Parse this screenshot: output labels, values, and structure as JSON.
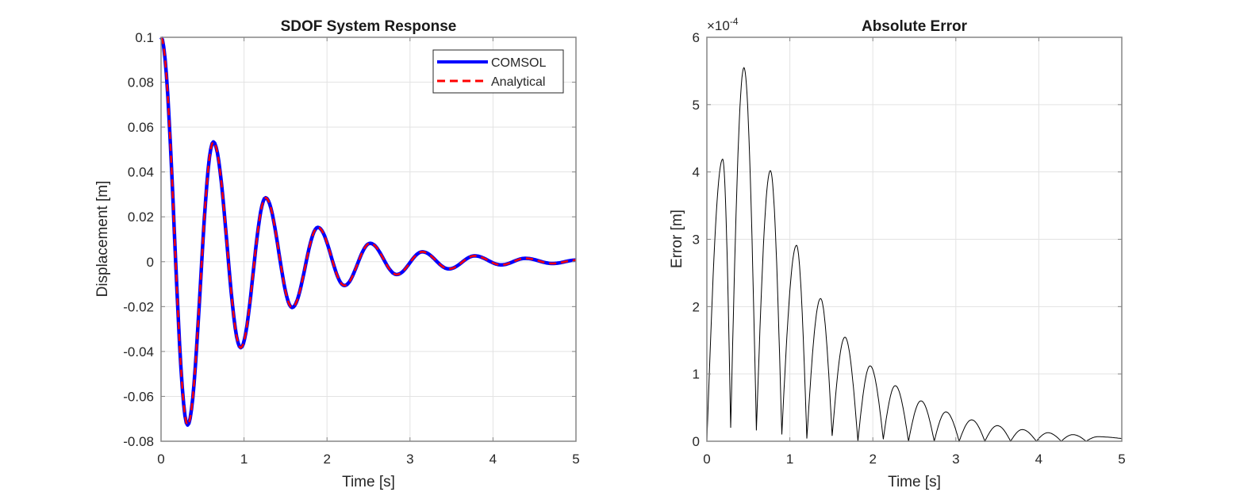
{
  "chart_data": [
    {
      "type": "line",
      "title": "SDOF System Response",
      "xlabel": "Time [s]",
      "ylabel": "Displacement [m]",
      "xlim": [
        0,
        5
      ],
      "ylim": [
        -0.08,
        0.1
      ],
      "xticks": [
        "0",
        "1",
        "2",
        "3",
        "4",
        "5"
      ],
      "yticks": [
        "-0.08",
        "-0.06",
        "-0.04",
        "-0.02",
        "0",
        "0.02",
        "0.04",
        "0.06",
        "0.08",
        "0.1"
      ],
      "grid": true,
      "legend_position": "top-right",
      "series": [
        {
          "name": "COMSOL",
          "color": "#0000ff",
          "style": "solid"
        },
        {
          "name": "Analytical",
          "color": "#ff0000",
          "style": "dashed"
        }
      ],
      "extrema_points": [
        [
          0,
          0.1
        ],
        [
          0.32,
          -0.0728
        ],
        [
          0.63,
          0.0534
        ],
        [
          0.96,
          -0.0383
        ],
        [
          1.26,
          0.0285
        ],
        [
          1.58,
          -0.0204
        ],
        [
          1.89,
          0.0153
        ],
        [
          2.21,
          -0.0106
        ],
        [
          2.52,
          0.0082
        ],
        [
          2.84,
          -0.0057
        ],
        [
          3.15,
          0.0044
        ],
        [
          3.47,
          -0.0032
        ],
        [
          3.78,
          0.0026
        ],
        [
          4.1,
          -0.0014
        ],
        [
          4.39,
          0.0015
        ],
        [
          4.72,
          -0.0008
        ],
        [
          5.0,
          0.0007
        ]
      ]
    },
    {
      "type": "line",
      "title": "Absolute Error",
      "xlabel": "Time [s]",
      "ylabel": "Error [m]",
      "y_exponent_label": "×10",
      "y_exponent": "-4",
      "xlim": [
        0,
        5
      ],
      "ylim": [
        0,
        0.0006
      ],
      "xticks": [
        "0",
        "1",
        "2",
        "3",
        "4",
        "5"
      ],
      "yticks": [
        "0",
        "1",
        "2",
        "3",
        "4",
        "5",
        "6"
      ],
      "grid": true,
      "color": "#000000",
      "points_x1e-4": [
        [
          0,
          0
        ],
        [
          0.19,
          4.19
        ],
        [
          0.287,
          0.2
        ],
        [
          0.447,
          5.55
        ],
        [
          0.597,
          0.16
        ],
        [
          0.765,
          4.02
        ],
        [
          0.903,
          0.1
        ],
        [
          1.08,
          2.91
        ],
        [
          1.205,
          0.04
        ],
        [
          1.37,
          2.12
        ],
        [
          1.51,
          0.08
        ],
        [
          1.664,
          1.545
        ],
        [
          1.82,
          0
        ],
        [
          1.967,
          1.12
        ],
        [
          2.126,
          0.03
        ],
        [
          2.27,
          0.825
        ],
        [
          2.43,
          0
        ],
        [
          2.58,
          0.6
        ],
        [
          2.74,
          0
        ],
        [
          2.88,
          0.436
        ],
        [
          3.04,
          0
        ],
        [
          3.19,
          0.318
        ],
        [
          3.35,
          0
        ],
        [
          3.5,
          0.232
        ],
        [
          3.66,
          0
        ],
        [
          3.8,
          0.173
        ],
        [
          3.97,
          0
        ],
        [
          4.11,
          0.126
        ],
        [
          4.27,
          0
        ],
        [
          4.41,
          0.098
        ],
        [
          4.57,
          0
        ],
        [
          4.71,
          0.067
        ],
        [
          5.0,
          0.04
        ]
      ]
    }
  ]
}
